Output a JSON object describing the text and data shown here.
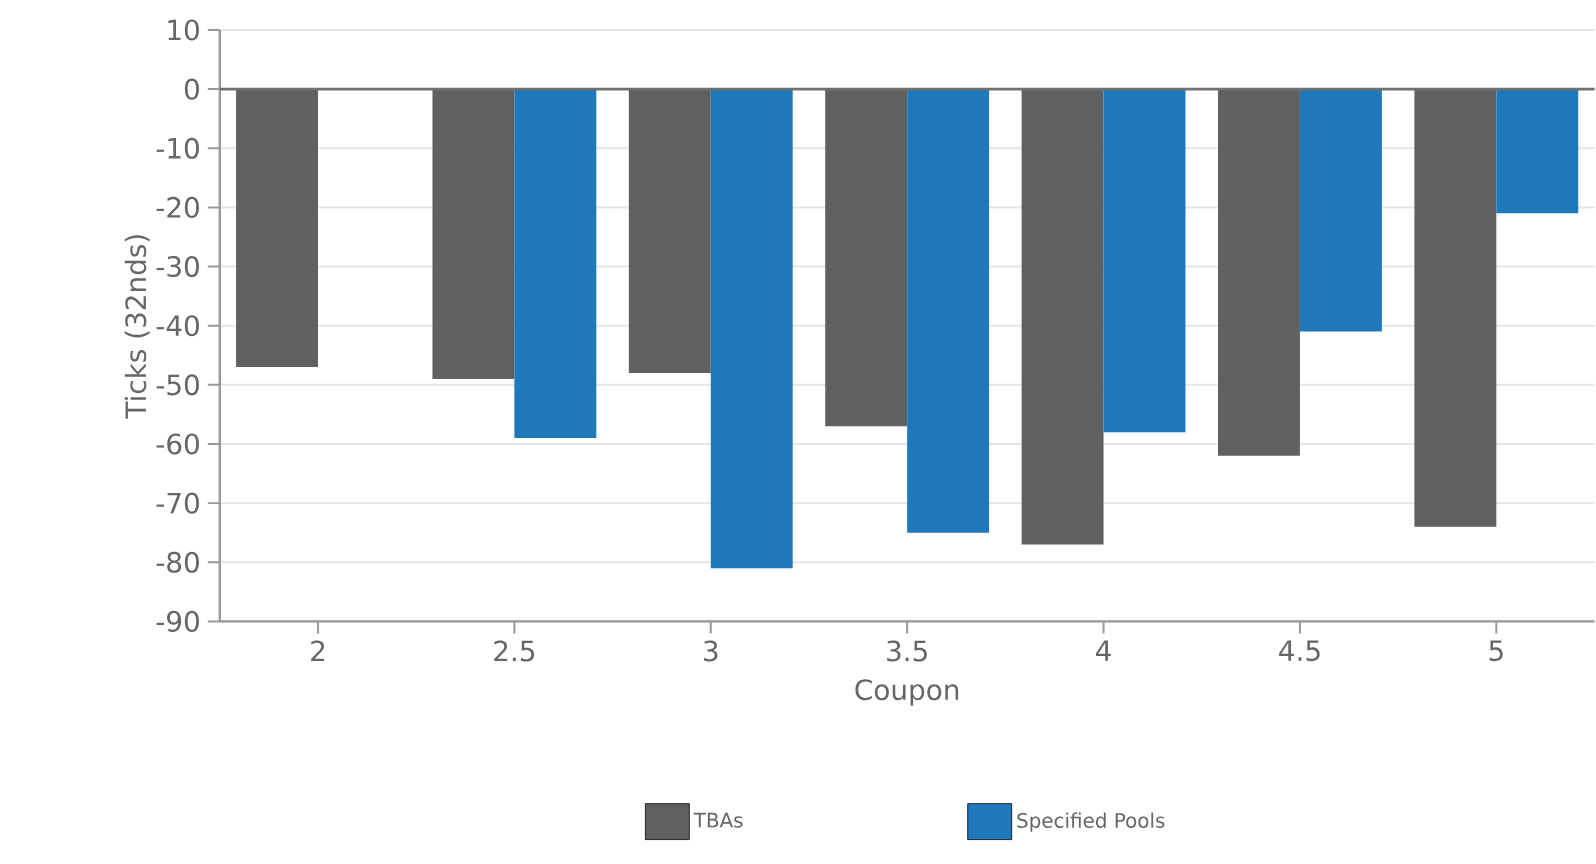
{
  "chart_data": {
    "type": "bar",
    "xlabel": "Coupon",
    "ylabel": "Ticks (32nds)",
    "categories": [
      "2",
      "2.5",
      "3",
      "3.5",
      "4",
      "4.5",
      "5"
    ],
    "series": [
      {
        "name": "TBAs",
        "color": "#606060",
        "values": [
          -47,
          -49,
          -48,
          -57,
          -77,
          -62,
          -74
        ]
      },
      {
        "name": "Specified Pools",
        "color": "#1f78b9",
        "values": [
          null,
          -59,
          -81,
          -75,
          -58,
          -41,
          -21
        ]
      }
    ],
    "ylim": [
      -90,
      10
    ],
    "yticks": [
      -90,
      -80,
      -70,
      -60,
      -50,
      -40,
      -30,
      -20,
      -10,
      0,
      10
    ],
    "ref_lines": [
      {
        "axis": "y",
        "value": 0,
        "color": "#707070"
      }
    ],
    "grid": "y",
    "legend": "bottom"
  }
}
